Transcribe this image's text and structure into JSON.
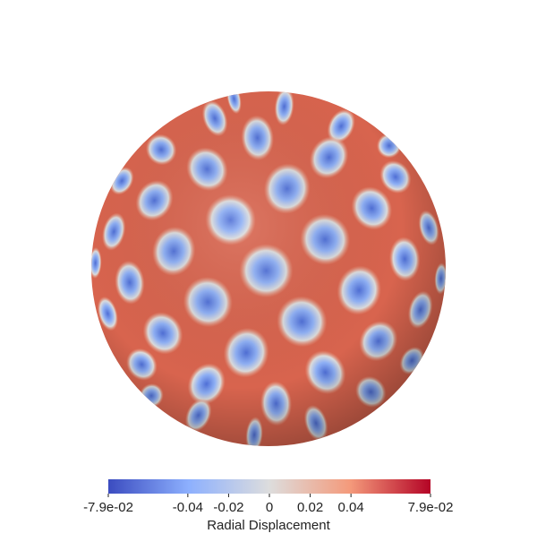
{
  "render": {
    "colormap": [
      "#3b4cc0",
      "#8db0fe",
      "#dddddd",
      "#f49a7b",
      "#b40426"
    ],
    "background": "#ffffff"
  },
  "colorbar": {
    "title": "Radial Displacement",
    "range": [
      -0.079,
      0.079
    ],
    "ticks": [
      {
        "value": -0.079,
        "label": "-7.9e-02"
      },
      {
        "value": -0.04,
        "label": "-0.04"
      },
      {
        "value": -0.02,
        "label": "-0.02"
      },
      {
        "value": 0,
        "label": "0"
      },
      {
        "value": 0.02,
        "label": "0.02"
      },
      {
        "value": 0.04,
        "label": "0.04"
      },
      {
        "value": 0.079,
        "label": "7.9e-02"
      }
    ]
  }
}
